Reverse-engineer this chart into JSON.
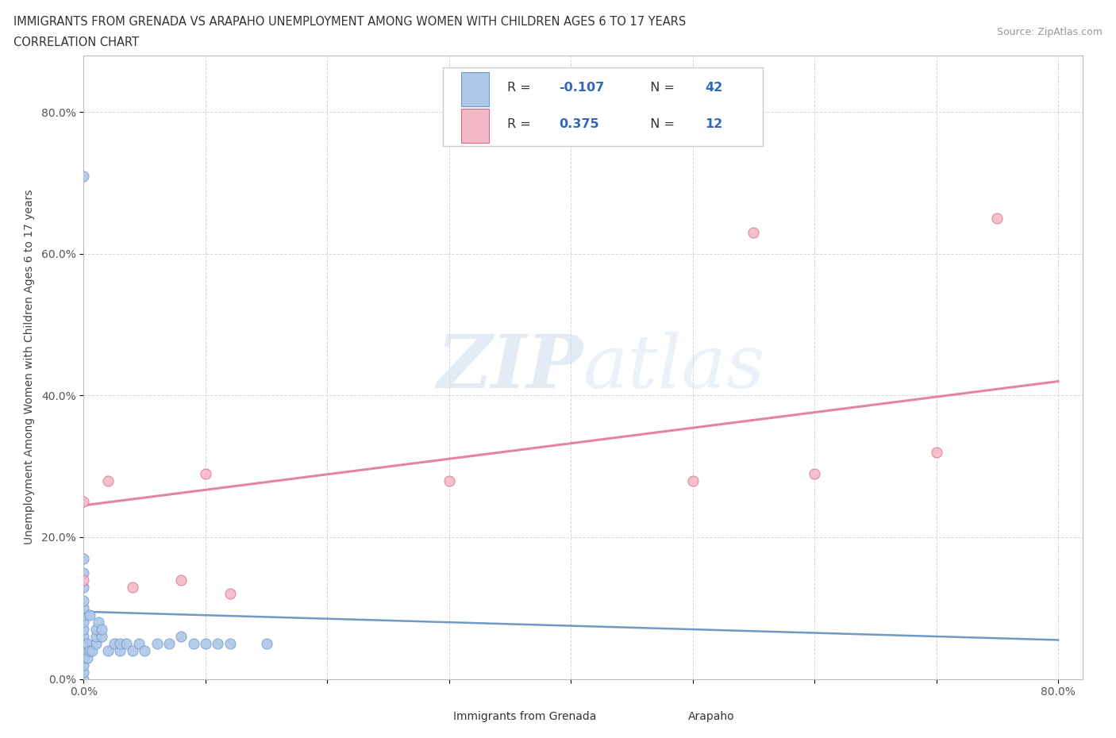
{
  "title_line1": "IMMIGRANTS FROM GRENADA VS ARAPAHO UNEMPLOYMENT AMONG WOMEN WITH CHILDREN AGES 6 TO 17 YEARS",
  "title_line2": "CORRELATION CHART",
  "source_text": "Source: ZipAtlas.com",
  "ylabel": "Unemployment Among Women with Children Ages 6 to 17 years",
  "xlim": [
    0.0,
    0.82
  ],
  "ylim": [
    0.0,
    0.88
  ],
  "xtick_positions": [
    0.0,
    0.1,
    0.2,
    0.3,
    0.4,
    0.5,
    0.6,
    0.7,
    0.8
  ],
  "ytick_positions": [
    0.0,
    0.2,
    0.4,
    0.6,
    0.8
  ],
  "grenada_color": "#aec6e8",
  "grenada_edge_color": "#6699cc",
  "arapaho_color": "#f4b8c8",
  "arapaho_edge_color": "#dd6688",
  "trend_blue": "#5588bb",
  "trend_pink": "#e07898",
  "grenada_R": "-0.107",
  "grenada_N": "42",
  "arapaho_R": "0.375",
  "arapaho_N": "12",
  "watermark": "ZIPatlas",
  "background_color": "#ffffff",
  "grid_color": "#cccccc",
  "grenada_scatter_x": [
    0.0,
    0.0,
    0.0,
    0.0,
    0.0,
    0.0,
    0.0,
    0.0,
    0.0,
    0.0,
    0.0,
    0.0,
    0.0,
    0.0,
    0.0,
    0.003,
    0.003,
    0.005,
    0.005,
    0.007,
    0.01,
    0.01,
    0.01,
    0.012,
    0.015,
    0.015,
    0.02,
    0.025,
    0.03,
    0.03,
    0.035,
    0.04,
    0.045,
    0.05,
    0.06,
    0.07,
    0.08,
    0.09,
    0.1,
    0.11,
    0.12,
    0.15
  ],
  "grenada_scatter_y": [
    0.0,
    0.01,
    0.02,
    0.03,
    0.04,
    0.05,
    0.06,
    0.07,
    0.08,
    0.09,
    0.1,
    0.11,
    0.13,
    0.15,
    0.17,
    0.03,
    0.05,
    0.04,
    0.09,
    0.04,
    0.05,
    0.06,
    0.07,
    0.08,
    0.06,
    0.07,
    0.04,
    0.05,
    0.04,
    0.05,
    0.05,
    0.04,
    0.05,
    0.04,
    0.05,
    0.05,
    0.06,
    0.05,
    0.05,
    0.05,
    0.05,
    0.05
  ],
  "grenada_outlier_x": [
    0.0
  ],
  "grenada_outlier_y": [
    0.71
  ],
  "arapaho_scatter_x": [
    0.0,
    0.0,
    0.02,
    0.04,
    0.08,
    0.1,
    0.12,
    0.3,
    0.5,
    0.6,
    0.7,
    0.75
  ],
  "arapaho_scatter_y": [
    0.14,
    0.25,
    0.28,
    0.13,
    0.14,
    0.29,
    0.12,
    0.28,
    0.28,
    0.29,
    0.32,
    0.65
  ],
  "arapaho_outlier_x": [
    0.55
  ],
  "arapaho_outlier_y": [
    0.63
  ],
  "grenada_trend_x": [
    0.0,
    0.8
  ],
  "grenada_trend_y": [
    0.095,
    0.055
  ],
  "arapaho_trend_x": [
    0.0,
    0.8
  ],
  "arapaho_trend_y": [
    0.245,
    0.42
  ]
}
